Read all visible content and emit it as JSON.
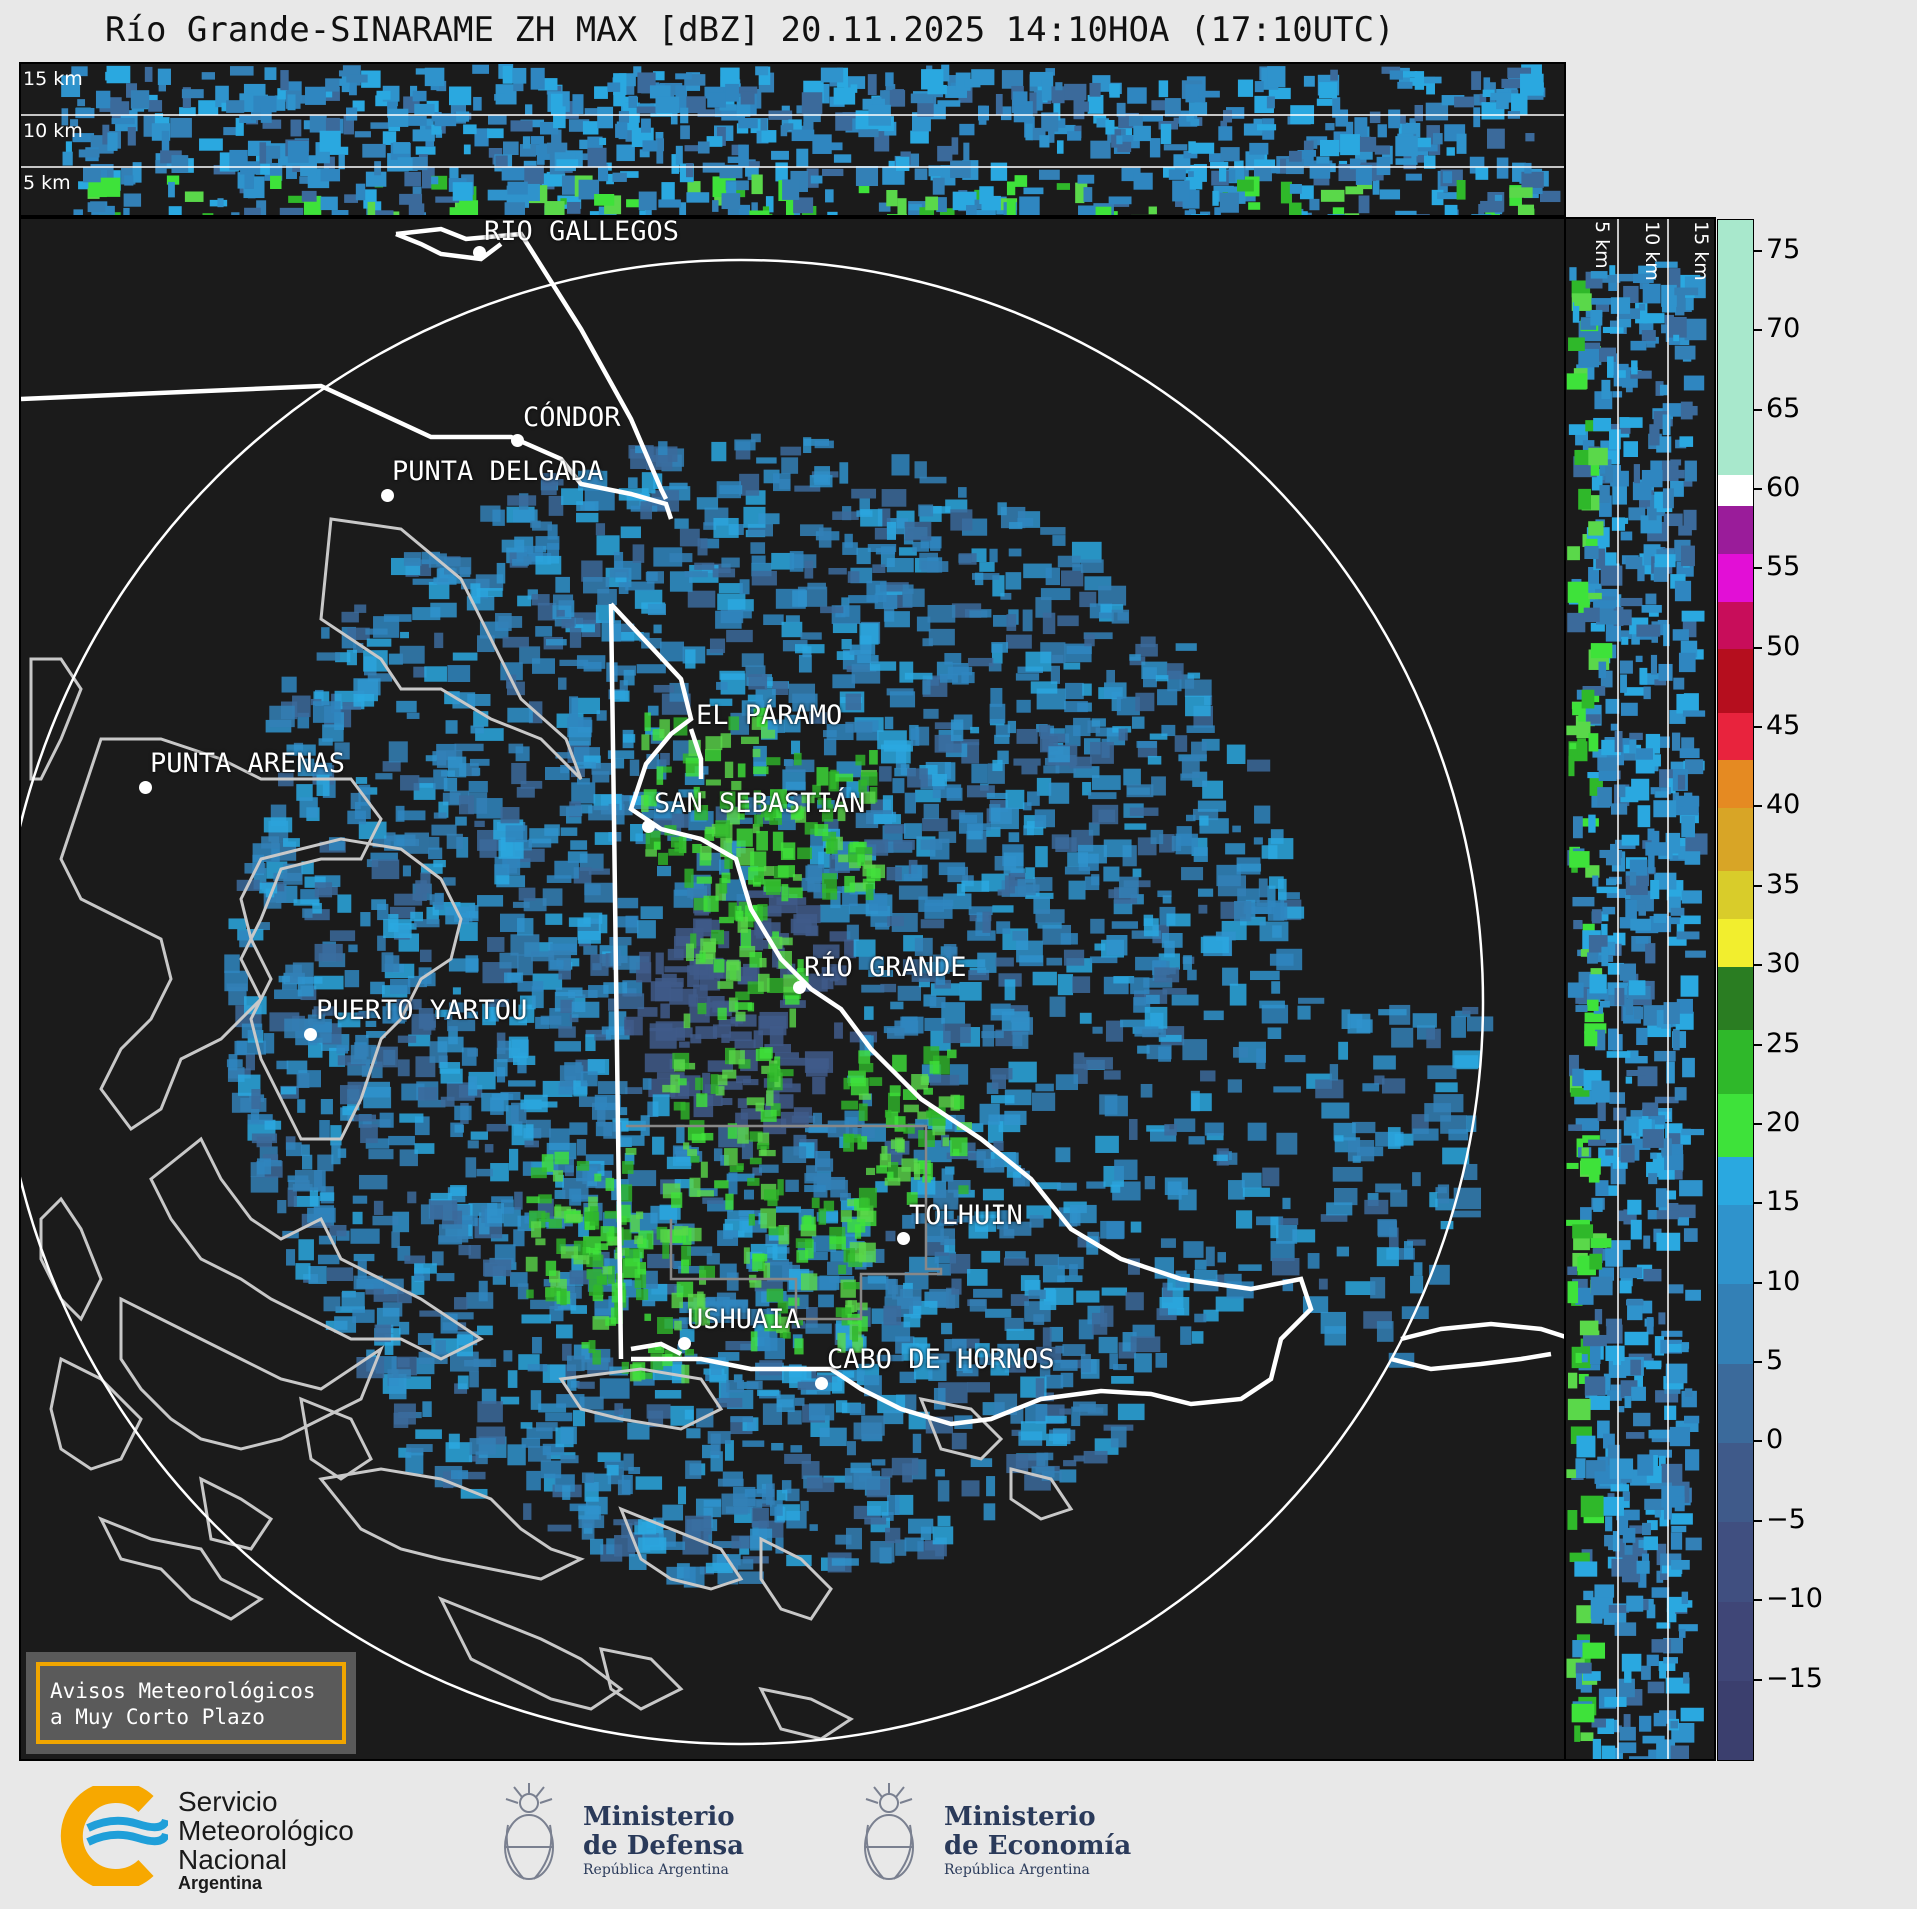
{
  "title": "Río Grande-SINARAME ZH MAX [dBZ] 20.11.2025 14:10HOA (17:10UTC)",
  "top_panel": {
    "altitude_labels": [
      "15 km",
      "10 km",
      "5 km"
    ]
  },
  "side_panel": {
    "altitude_labels": [
      "5 km",
      "10 km",
      "15 km"
    ]
  },
  "cities": [
    {
      "name": "RÍO GALLEGOS",
      "id": "rio-gallegos"
    },
    {
      "name": "CÓNDOR",
      "id": "condor"
    },
    {
      "name": "PUNTA DELGADA",
      "id": "punta-delgada"
    },
    {
      "name": "EL PÁRAMO",
      "id": "el-paramo"
    },
    {
      "name": "PUNTA ARENAS",
      "id": "punta-arenas"
    },
    {
      "name": "SAN SEBASTIÁN",
      "id": "san-sebastian"
    },
    {
      "name": "RÍO GRANDE",
      "id": "rio-grande"
    },
    {
      "name": "PUERTO YARTOU",
      "id": "puerto-yartou"
    },
    {
      "name": "TOLHUIN",
      "id": "tolhuin"
    },
    {
      "name": "USHUAIA",
      "id": "ushuaia"
    },
    {
      "name": "CABO DE HORNOS",
      "id": "cabo-de-hornos"
    }
  ],
  "notice": {
    "line1": "Avisos Meteorológicos",
    "line2": "a Muy Corto Plazo"
  },
  "colorbar": {
    "unit": "dBZ",
    "ticks": [
      "75",
      "70",
      "65",
      "60",
      "55",
      "50",
      "45",
      "40",
      "35",
      "30",
      "25",
      "20",
      "15",
      "10",
      "5",
      "0",
      "−5",
      "−10",
      "−15"
    ],
    "segments": [
      {
        "from": -20,
        "to": -15,
        "color": "#3b3f6e"
      },
      {
        "from": -15,
        "to": -10,
        "color": "#3f4677"
      },
      {
        "from": -10,
        "to": -5,
        "color": "#404f80"
      },
      {
        "from": -5,
        "to": 0,
        "color": "#3f5a8a"
      },
      {
        "from": 0,
        "to": 5,
        "color": "#3b6a9b"
      },
      {
        "from": 5,
        "to": 10,
        "color": "#3380b6"
      },
      {
        "from": 10,
        "to": 15,
        "color": "#2f93cc"
      },
      {
        "from": 15,
        "to": 18,
        "color": "#2aa8e0"
      },
      {
        "from": 18,
        "to": 22,
        "color": "#3ee23a"
      },
      {
        "from": 22,
        "to": 26,
        "color": "#2fb82a"
      },
      {
        "from": 26,
        "to": 30,
        "color": "#2a7d22"
      },
      {
        "from": 30,
        "to": 33,
        "color": "#f2ee2e"
      },
      {
        "from": 33,
        "to": 36,
        "color": "#d9cc2a"
      },
      {
        "from": 36,
        "to": 40,
        "color": "#d8a526"
      },
      {
        "from": 40,
        "to": 43,
        "color": "#e58a22"
      },
      {
        "from": 43,
        "to": 46,
        "color": "#e8233d"
      },
      {
        "from": 46,
        "to": 50,
        "color": "#b50e1e"
      },
      {
        "from": 50,
        "to": 53,
        "color": "#c80d5a"
      },
      {
        "from": 53,
        "to": 56,
        "color": "#e20fd6"
      },
      {
        "from": 56,
        "to": 59,
        "color": "#9a1c9a"
      },
      {
        "from": 59,
        "to": 61,
        "color": "#ffffff"
      },
      {
        "from": 61,
        "to": 77,
        "color": "#a8e8cc"
      }
    ],
    "range": [
      -20,
      77
    ]
  },
  "logos": {
    "smn": {
      "line1": "Servicio",
      "line2": "Meteorológico",
      "line3": "Nacional",
      "line4": "Argentina"
    },
    "defensa": {
      "line1": "Ministerio",
      "line2": "de Defensa",
      "line3": "República Argentina"
    },
    "economia": {
      "line1": "Ministerio",
      "line2": "de Economía",
      "line3": "República Argentina"
    }
  }
}
